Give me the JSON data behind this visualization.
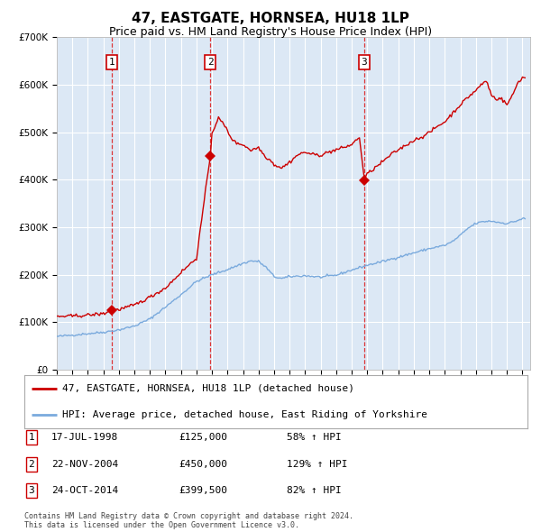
{
  "title": "47, EASTGATE, HORNSEA, HU18 1LP",
  "subtitle": "Price paid vs. HM Land Registry's House Price Index (HPI)",
  "legend_label_red": "47, EASTGATE, HORNSEA, HU18 1LP (detached house)",
  "legend_label_blue": "HPI: Average price, detached house, East Riding of Yorkshire",
  "footer1": "Contains HM Land Registry data © Crown copyright and database right 2024.",
  "footer2": "This data is licensed under the Open Government Licence v3.0.",
  "sales": [
    {
      "num": 1,
      "date_label": "17-JUL-1998",
      "date_x": 1998.54,
      "price": 125000,
      "pct": "58% ↑ HPI"
    },
    {
      "num": 2,
      "date_label": "22-NOV-2004",
      "date_x": 2004.89,
      "price": 450000,
      "pct": "129% ↑ HPI"
    },
    {
      "num": 3,
      "date_label": "24-OCT-2014",
      "date_x": 2014.81,
      "price": 399500,
      "pct": "82% ↑ HPI"
    }
  ],
  "rows": [
    {
      "num": "1",
      "date": "17-JUL-1998",
      "price": "£125,000",
      "pct": "58% ↑ HPI"
    },
    {
      "num": "2",
      "date": "22-NOV-2004",
      "price": "£450,000",
      "pct": "129% ↑ HPI"
    },
    {
      "num": "3",
      "date": "24-OCT-2014",
      "price": "£399,500",
      "pct": "82% ↑ HPI"
    }
  ],
  "ylim": [
    0,
    700000
  ],
  "yticks": [
    0,
    100000,
    200000,
    300000,
    400000,
    500000,
    600000,
    700000
  ],
  "xlim_start": 1995.0,
  "xlim_end": 2025.5,
  "plot_bg": "#dce8f5",
  "grid_color": "#ffffff",
  "red_line_color": "#cc0000",
  "blue_line_color": "#7aaadd",
  "sale_marker_color": "#cc0000",
  "vline_color": "#dd2222",
  "title_fontsize": 11,
  "subtitle_fontsize": 9
}
